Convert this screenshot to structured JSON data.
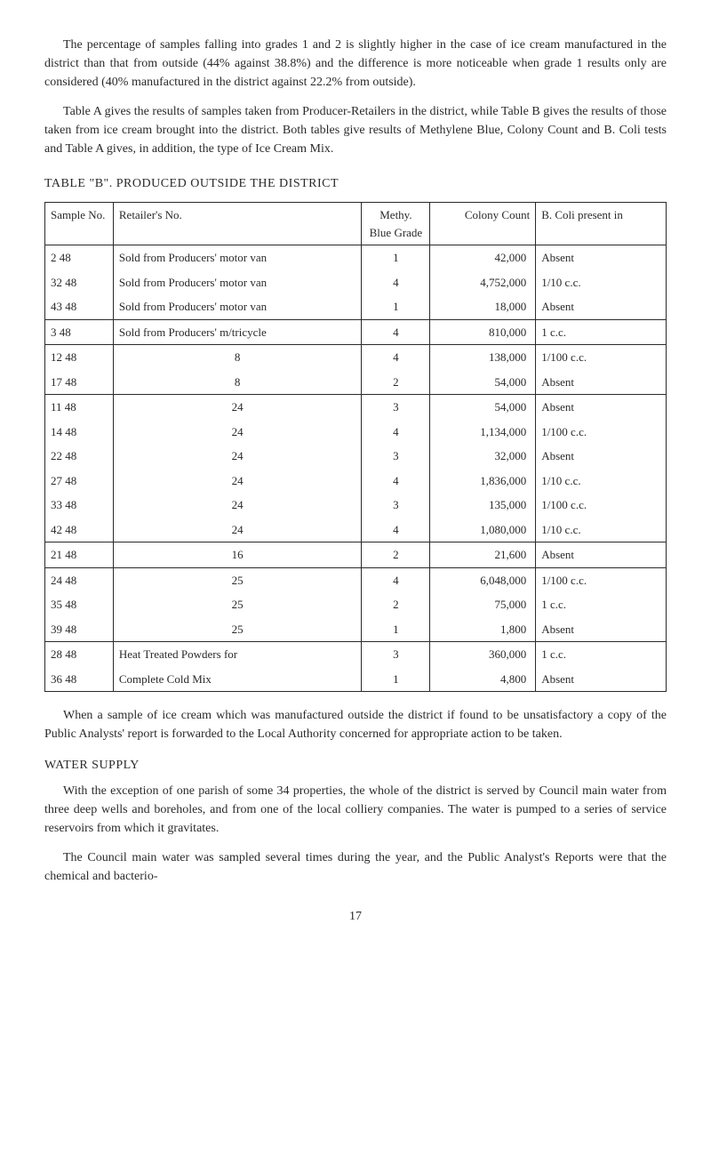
{
  "para1": "The percentage of samples falling into grades 1 and 2 is slightly higher in the case of ice cream manufactured in the district than that from outside (44% against 38.8%) and the difference is more noticeable when grade 1 results only are considered (40% manufactured in the district against 22.2% from outside).",
  "para2": "Table A gives the results of samples taken from Producer-Retailers in the district, while Table B gives the results of those taken from ice cream brought into the district. Both tables give results of Methylene Blue, Colony Count and B. Coli tests and Table A gives, in addition, the type of Ice Cream Mix.",
  "tableTitle": "TABLE \"B\". PRODUCED OUTSIDE THE DISTRICT",
  "headers": {
    "sample": "Sample No.",
    "retailer": "Retailer's No.",
    "grade": "Methy. Blue Grade",
    "colony": "Colony Count",
    "coli": "B. Coli present in"
  },
  "groups": [
    {
      "rows": [
        {
          "s": "2 48",
          "r": "Sold from Producers' motor van",
          "g": "1",
          "c": "42,000",
          "b": "Absent"
        },
        {
          "s": "32 48",
          "r": "Sold from Producers' motor van",
          "g": "4",
          "c": "4,752,000",
          "b": "1/10 c.c."
        },
        {
          "s": "43 48",
          "r": "Sold from Producers' motor van",
          "g": "1",
          "c": "18,000",
          "b": "Absent"
        }
      ]
    },
    {
      "rows": [
        {
          "s": "3 48",
          "r": "Sold from Producers' m/tricycle",
          "g": "4",
          "c": "810,000",
          "b": "1 c.c."
        }
      ]
    },
    {
      "rows": [
        {
          "s": "12 48",
          "r": "8",
          "g": "4",
          "c": "138,000",
          "b": "1/100 c.c."
        },
        {
          "s": "17 48",
          "r": "8",
          "g": "2",
          "c": "54,000",
          "b": "Absent"
        }
      ]
    },
    {
      "rows": [
        {
          "s": "11 48",
          "r": "24",
          "g": "3",
          "c": "54,000",
          "b": "Absent"
        },
        {
          "s": "14 48",
          "r": "24",
          "g": "4",
          "c": "1,134,000",
          "b": "1/100 c.c."
        },
        {
          "s": "22 48",
          "r": "24",
          "g": "3",
          "c": "32,000",
          "b": "Absent"
        },
        {
          "s": "27 48",
          "r": "24",
          "g": "4",
          "c": "1,836,000",
          "b": "1/10 c.c."
        },
        {
          "s": "33 48",
          "r": "24",
          "g": "3",
          "c": "135,000",
          "b": "1/100 c.c."
        },
        {
          "s": "42 48",
          "r": "24",
          "g": "4",
          "c": "1,080,000",
          "b": "1/10 c.c."
        }
      ]
    },
    {
      "rows": [
        {
          "s": "21 48",
          "r": "16",
          "g": "2",
          "c": "21,600",
          "b": "Absent"
        }
      ]
    },
    {
      "rows": [
        {
          "s": "24 48",
          "r": "25",
          "g": "4",
          "c": "6,048,000",
          "b": "1/100 c.c."
        },
        {
          "s": "35 48",
          "r": "25",
          "g": "2",
          "c": "75,000",
          "b": "1 c.c."
        },
        {
          "s": "39 48",
          "r": "25",
          "g": "1",
          "c": "1,800",
          "b": "Absent"
        }
      ]
    },
    {
      "rows": [
        {
          "s": "28 48",
          "r": "Heat Treated Powders for",
          "g": "3",
          "c": "360,000",
          "b": "1 c.c."
        },
        {
          "s": "36 48",
          "r": "Complete Cold Mix",
          "g": "1",
          "c": "4,800",
          "b": "Absent"
        }
      ]
    }
  ],
  "para3": "When a sample of ice cream which was manufactured outside the district if found to be unsatisfactory a copy of the Public Analysts' report is forwarded to the Local Authority concerned for appropriate action to be taken.",
  "waterTitle": "WATER SUPPLY",
  "para4": "With the exception of one parish of some 34 properties, the whole of the district is served by Council main water from three deep wells and boreholes, and from one of the local colliery companies. The water is pumped to a series of service reservoirs from which it gravitates.",
  "para5": "The Council main water was sampled several times during the year, and the Public Analyst's Reports were that the chemical and bacterio-",
  "pageNumber": "17",
  "centeredRetailer": [
    "8",
    "8",
    "24",
    "24",
    "24",
    "24",
    "24",
    "24",
    "16",
    "25",
    "25",
    "25"
  ]
}
